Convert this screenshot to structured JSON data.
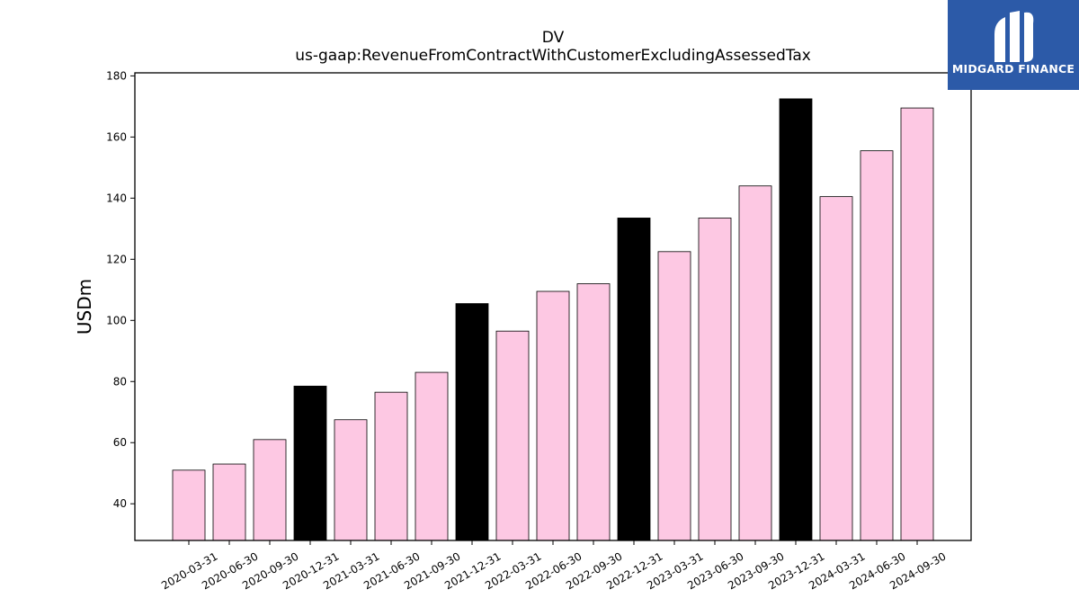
{
  "chart_data": {
    "type": "bar",
    "title": "DV",
    "subtitle": "us-gaap:RevenueFromContractWithCustomerExcludingAssessedTax",
    "ylabel": "USDm",
    "xlabel": "",
    "ylim": [
      28,
      181
    ],
    "yticks": [
      40,
      60,
      80,
      100,
      120,
      140,
      160,
      180
    ],
    "grid": false,
    "categories": [
      "2020-03-31",
      "2020-06-30",
      "2020-09-30",
      "2020-12-31",
      "2021-03-31",
      "2021-06-30",
      "2021-09-30",
      "2021-12-31",
      "2022-03-31",
      "2022-06-30",
      "2022-09-30",
      "2022-12-31",
      "2023-03-31",
      "2023-06-30",
      "2023-09-30",
      "2023-12-31",
      "2024-03-31",
      "2024-06-30",
      "2024-09-30"
    ],
    "values": [
      51,
      53,
      61,
      78.5,
      67.5,
      76.5,
      83,
      105.5,
      96.5,
      109.5,
      112,
      133.5,
      122.5,
      133.5,
      144,
      172.5,
      140.5,
      155.5,
      169.5
    ],
    "colors": {
      "default_bar": "#fdc8e3",
      "q4_bar": "#000000",
      "edge": "#000000"
    }
  },
  "logo": {
    "text": "MIDGARD FINANCE",
    "background": "#2c5aa8"
  }
}
